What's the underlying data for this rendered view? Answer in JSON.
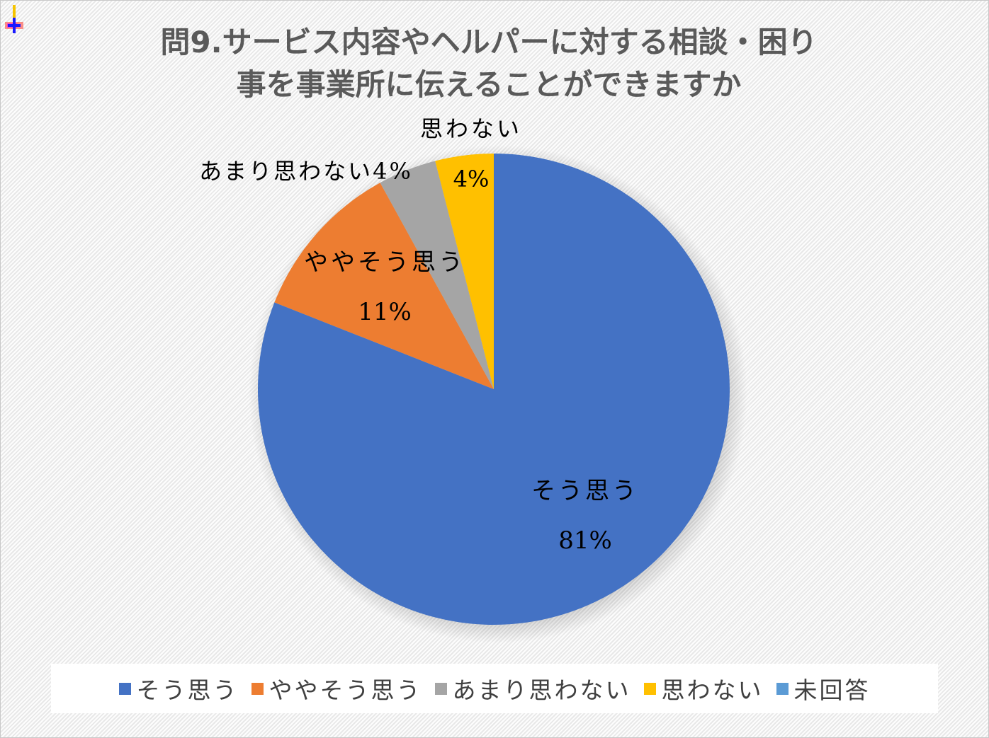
{
  "title_lines": [
    "問9.サービス内容やヘルパーに対する相談・困り",
    "事を事業所に伝えることができますか"
  ],
  "colors": {
    "frame_border": "#c8c8c8",
    "title": "#5a5a5a",
    "label_text": "#000000",
    "legend_text": "#404040"
  },
  "chart_data": {
    "type": "pie",
    "title": "問9.サービス内容やヘルパーに対する相談・困り事を事業所に伝えることができますか",
    "slices": [
      {
        "label": "そう思う",
        "value": 81,
        "value_label": "81%",
        "color": "#4472C4"
      },
      {
        "label": "ややそう思う",
        "value": 11,
        "value_label": "11%",
        "color": "#ED7D31"
      },
      {
        "label": "あまり思わない",
        "value": 4,
        "value_label": "4%",
        "color": "#A5A5A5"
      },
      {
        "label": "思わない",
        "value": 4,
        "value_label": "4%",
        "color": "#FFC000"
      },
      {
        "label": "未回答",
        "value": 0,
        "value_label": "",
        "color": "#5B9BD5"
      }
    ],
    "legend_position": "bottom",
    "start_angle_deg": 0,
    "direction": "clockwise"
  }
}
